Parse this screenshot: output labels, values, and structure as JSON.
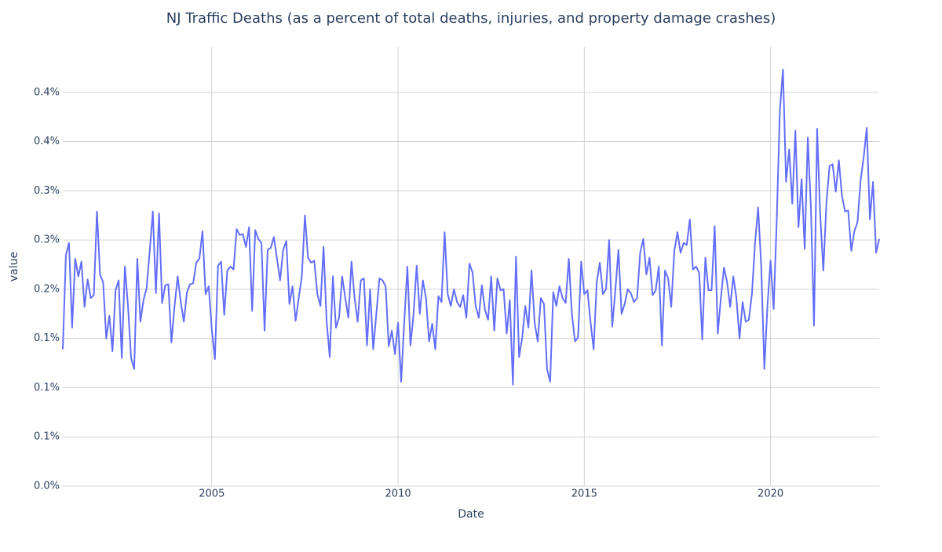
{
  "chart_data": {
    "type": "line",
    "title": "NJ Traffic Deaths (as a percent of total deaths, injuries, and property damage crashes)",
    "x_label": "Date",
    "y_label": "value",
    "color": "#636efa",
    "grid": true,
    "xlim": [
      "2001-01",
      "2022-12"
    ],
    "xticks": [
      2005,
      2010,
      2015,
      2020
    ],
    "ylim": [
      0,
      0.446
    ],
    "yticks": [
      {
        "value": 0,
        "label": "0.0%"
      },
      {
        "value": 0.05,
        "label": "0.1%"
      },
      {
        "value": 0.1,
        "label": "0.1%"
      },
      {
        "value": 0.15,
        "label": "0.1%"
      },
      {
        "value": 0.2,
        "label": "0.2%"
      },
      {
        "value": 0.25,
        "label": "0.3%"
      },
      {
        "value": 0.3,
        "label": "0.3%"
      },
      {
        "value": 0.35,
        "label": "0.4%"
      },
      {
        "value": 0.4,
        "label": "0.4%"
      }
    ],
    "x": [
      "2001-01",
      "2001-02",
      "2001-03",
      "2001-04",
      "2001-05",
      "2001-06",
      "2001-07",
      "2001-08",
      "2001-09",
      "2001-10",
      "2001-11",
      "2001-12",
      "2002-01",
      "2002-02",
      "2002-03",
      "2002-04",
      "2002-05",
      "2002-06",
      "2002-07",
      "2002-08",
      "2002-09",
      "2002-10",
      "2002-11",
      "2002-12",
      "2003-01",
      "2003-02",
      "2003-03",
      "2003-04",
      "2003-05",
      "2003-06",
      "2003-07",
      "2003-08",
      "2003-09",
      "2003-10",
      "2003-11",
      "2003-12",
      "2004-01",
      "2004-02",
      "2004-03",
      "2004-04",
      "2004-05",
      "2004-06",
      "2004-07",
      "2004-08",
      "2004-09",
      "2004-10",
      "2004-11",
      "2004-12",
      "2005-01",
      "2005-02",
      "2005-03",
      "2005-04",
      "2005-05",
      "2005-06",
      "2005-07",
      "2005-08",
      "2005-09",
      "2005-10",
      "2005-11",
      "2005-12",
      "2006-01",
      "2006-02",
      "2006-03",
      "2006-04",
      "2006-05",
      "2006-06",
      "2006-07",
      "2006-08",
      "2006-09",
      "2006-10",
      "2006-11",
      "2006-12",
      "2007-01",
      "2007-02",
      "2007-03",
      "2007-04",
      "2007-05",
      "2007-06",
      "2007-07",
      "2007-08",
      "2007-09",
      "2007-10",
      "2007-11",
      "2007-12",
      "2008-01",
      "2008-02",
      "2008-03",
      "2008-04",
      "2008-05",
      "2008-06",
      "2008-07",
      "2008-08",
      "2008-09",
      "2008-10",
      "2008-11",
      "2008-12",
      "2009-01",
      "2009-02",
      "2009-03",
      "2009-04",
      "2009-05",
      "2009-06",
      "2009-07",
      "2009-08",
      "2009-09",
      "2009-10",
      "2009-11",
      "2009-12",
      "2010-01",
      "2010-02",
      "2010-03",
      "2010-04",
      "2010-05",
      "2010-06",
      "2010-07",
      "2010-08",
      "2010-09",
      "2010-10",
      "2010-11",
      "2010-12",
      "2011-01",
      "2011-02",
      "2011-03",
      "2011-04",
      "2011-05",
      "2011-06",
      "2011-07",
      "2011-08",
      "2011-09",
      "2011-10",
      "2011-11",
      "2011-12",
      "2012-01",
      "2012-02",
      "2012-03",
      "2012-04",
      "2012-05",
      "2012-06",
      "2012-07",
      "2012-08",
      "2012-09",
      "2012-10",
      "2012-11",
      "2012-12",
      "2013-01",
      "2013-02",
      "2013-03",
      "2013-04",
      "2013-05",
      "2013-06",
      "2013-07",
      "2013-08",
      "2013-09",
      "2013-10",
      "2013-11",
      "2013-12",
      "2014-01",
      "2014-02",
      "2014-03",
      "2014-04",
      "2014-05",
      "2014-06",
      "2014-07",
      "2014-08",
      "2014-09",
      "2014-10",
      "2014-11",
      "2014-12",
      "2015-01",
      "2015-02",
      "2015-03",
      "2015-04",
      "2015-05",
      "2015-06",
      "2015-07",
      "2015-08",
      "2015-09",
      "2015-10",
      "2015-11",
      "2015-12",
      "2016-01",
      "2016-02",
      "2016-03",
      "2016-04",
      "2016-05",
      "2016-06",
      "2016-07",
      "2016-08",
      "2016-09",
      "2016-10",
      "2016-11",
      "2016-12",
      "2017-01",
      "2017-02",
      "2017-03",
      "2017-04",
      "2017-05",
      "2017-06",
      "2017-07",
      "2017-08",
      "2017-09",
      "2017-10",
      "2017-11",
      "2017-12",
      "2018-01",
      "2018-02",
      "2018-03",
      "2018-04",
      "2018-05",
      "2018-06",
      "2018-07",
      "2018-08",
      "2018-09",
      "2018-10",
      "2018-11",
      "2018-12",
      "2019-01",
      "2019-02",
      "2019-03",
      "2019-04",
      "2019-05",
      "2019-06",
      "2019-07",
      "2019-08",
      "2019-09",
      "2019-10",
      "2019-11",
      "2019-12",
      "2020-01",
      "2020-02",
      "2020-03",
      "2020-04",
      "2020-05",
      "2020-06",
      "2020-07",
      "2020-08",
      "2020-09",
      "2020-10",
      "2020-11",
      "2020-12",
      "2021-01",
      "2021-02",
      "2021-03",
      "2021-04",
      "2021-05",
      "2021-06",
      "2021-07",
      "2021-08",
      "2021-09",
      "2021-10",
      "2021-11",
      "2021-12",
      "2022-01",
      "2022-02",
      "2022-03",
      "2022-04",
      "2022-05",
      "2022-06",
      "2022-07",
      "2022-08",
      "2022-09",
      "2022-10",
      "2022-11",
      "2022-12"
    ],
    "values": [
      0.139,
      0.235,
      0.247,
      0.161,
      0.231,
      0.213,
      0.228,
      0.182,
      0.21,
      0.191,
      0.194,
      0.279,
      0.215,
      0.207,
      0.15,
      0.173,
      0.137,
      0.199,
      0.209,
      0.13,
      0.223,
      0.183,
      0.13,
      0.119,
      0.231,
      0.167,
      0.189,
      0.201,
      0.239,
      0.279,
      0.196,
      0.277,
      0.186,
      0.204,
      0.205,
      0.146,
      0.183,
      0.213,
      0.187,
      0.167,
      0.197,
      0.205,
      0.206,
      0.227,
      0.231,
      0.259,
      0.195,
      0.203,
      0.159,
      0.129,
      0.224,
      0.228,
      0.174,
      0.219,
      0.223,
      0.22,
      0.261,
      0.255,
      0.256,
      0.243,
      0.263,
      0.178,
      0.26,
      0.251,
      0.247,
      0.158,
      0.24,
      0.242,
      0.253,
      0.231,
      0.209,
      0.24,
      0.249,
      0.185,
      0.203,
      0.168,
      0.191,
      0.213,
      0.275,
      0.232,
      0.227,
      0.229,
      0.195,
      0.183,
      0.243,
      0.167,
      0.131,
      0.213,
      0.161,
      0.171,
      0.213,
      0.191,
      0.171,
      0.228,
      0.191,
      0.167,
      0.209,
      0.211,
      0.143,
      0.2,
      0.139,
      0.175,
      0.211,
      0.209,
      0.203,
      0.142,
      0.158,
      0.134,
      0.166,
      0.106,
      0.167,
      0.223,
      0.143,
      0.175,
      0.224,
      0.175,
      0.209,
      0.191,
      0.147,
      0.165,
      0.139,
      0.193,
      0.187,
      0.258,
      0.195,
      0.183,
      0.2,
      0.187,
      0.182,
      0.194,
      0.171,
      0.226,
      0.217,
      0.183,
      0.171,
      0.204,
      0.179,
      0.169,
      0.213,
      0.158,
      0.211,
      0.199,
      0.2,
      0.155,
      0.189,
      0.103,
      0.233,
      0.131,
      0.151,
      0.183,
      0.161,
      0.219,
      0.166,
      0.147,
      0.191,
      0.185,
      0.119,
      0.106,
      0.197,
      0.183,
      0.203,
      0.191,
      0.186,
      0.231,
      0.175,
      0.147,
      0.151,
      0.228,
      0.195,
      0.199,
      0.167,
      0.139,
      0.207,
      0.227,
      0.195,
      0.2,
      0.25,
      0.162,
      0.199,
      0.24,
      0.175,
      0.185,
      0.2,
      0.196,
      0.187,
      0.191,
      0.237,
      0.251,
      0.215,
      0.232,
      0.194,
      0.199,
      0.223,
      0.143,
      0.219,
      0.211,
      0.182,
      0.239,
      0.258,
      0.237,
      0.247,
      0.245,
      0.271,
      0.22,
      0.223,
      0.217,
      0.149,
      0.232,
      0.199,
      0.199,
      0.264,
      0.155,
      0.191,
      0.222,
      0.207,
      0.182,
      0.213,
      0.191,
      0.15,
      0.187,
      0.167,
      0.169,
      0.195,
      0.247,
      0.283,
      0.223,
      0.119,
      0.183,
      0.229,
      0.18,
      0.271,
      0.382,
      0.423,
      0.309,
      0.342,
      0.287,
      0.361,
      0.263,
      0.312,
      0.241,
      0.354,
      0.283,
      0.163,
      0.363,
      0.275,
      0.219,
      0.288,
      0.325,
      0.327,
      0.299,
      0.331,
      0.295,
      0.279,
      0.28,
      0.239,
      0.259,
      0.268,
      0.31,
      0.334,
      0.364,
      0.271,
      0.309,
      0.237,
      0.251
    ]
  }
}
